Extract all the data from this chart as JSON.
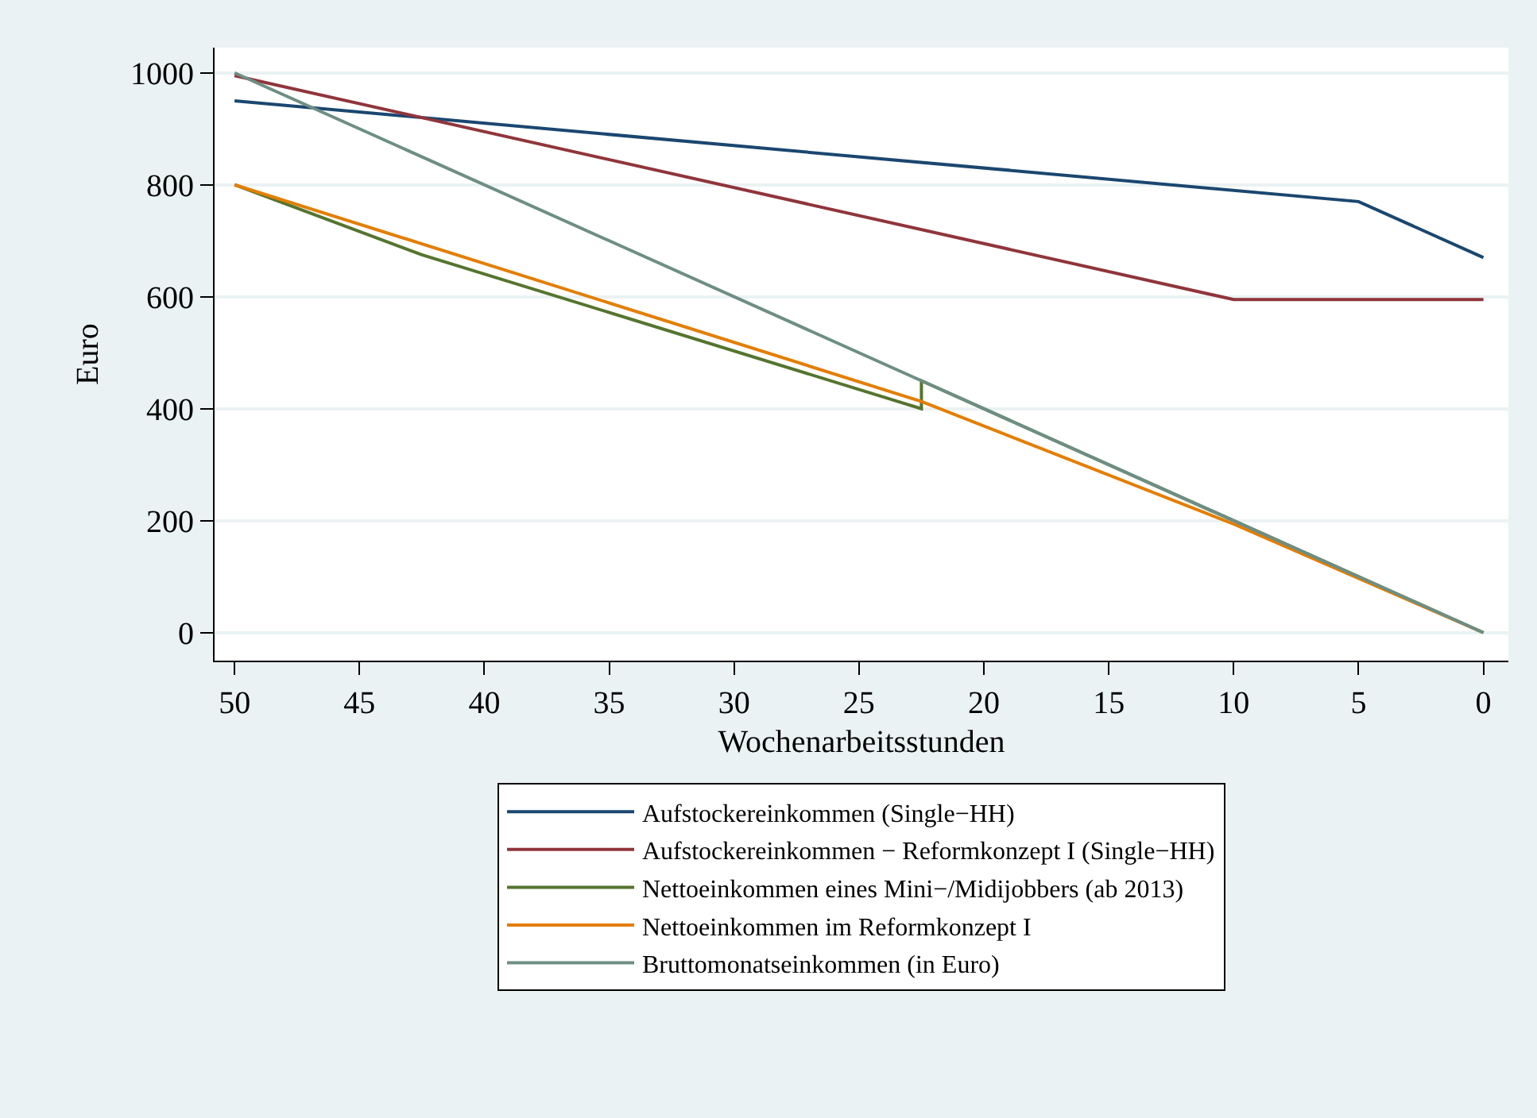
{
  "chart_data": {
    "type": "line",
    "xlabel": "Wochenarbeitsstunden",
    "ylabel": "Euro",
    "xlim": [
      50.8,
      -1
    ],
    "xticks": [
      50,
      45,
      40,
      35,
      30,
      25,
      20,
      15,
      10,
      5,
      0
    ],
    "ylim": [
      -50,
      1045
    ],
    "yticks": [
      0,
      200,
      400,
      600,
      800,
      1000
    ],
    "grid": "y",
    "legend": "bottom",
    "marker": "none",
    "line_style": "solid",
    "series": [
      {
        "name": "Aufstockereinkommen (Single−HH)",
        "color": "#1a476f",
        "x": [
          50,
          5,
          0
        ],
        "values": [
          950,
          770,
          670
        ]
      },
      {
        "name": "Aufstockereinkommen − Reformkonzept I (Single−HH)",
        "color": "#90353b",
        "x": [
          50,
          10,
          0
        ],
        "values": [
          995,
          595,
          595
        ]
      },
      {
        "name": "Nettoeinkommen eines Mini−/Midijobbers (ab 2013)",
        "color": "#55752f",
        "x": [
          50,
          42.5,
          22.5,
          22.5,
          0
        ],
        "values": [
          800,
          675,
          400,
          450,
          0
        ]
      },
      {
        "name": "Nettoeinkommen im Reformkonzept I",
        "color": "#e37e00",
        "x": [
          50,
          22.5,
          10,
          0
        ],
        "values": [
          800,
          413,
          194,
          0
        ]
      },
      {
        "name": "Bruttomonatseinkommen (in Euro)",
        "color": "#6e8e84",
        "x": [
          50,
          22.5,
          0
        ],
        "values": [
          1000,
          450,
          0
        ]
      }
    ]
  }
}
